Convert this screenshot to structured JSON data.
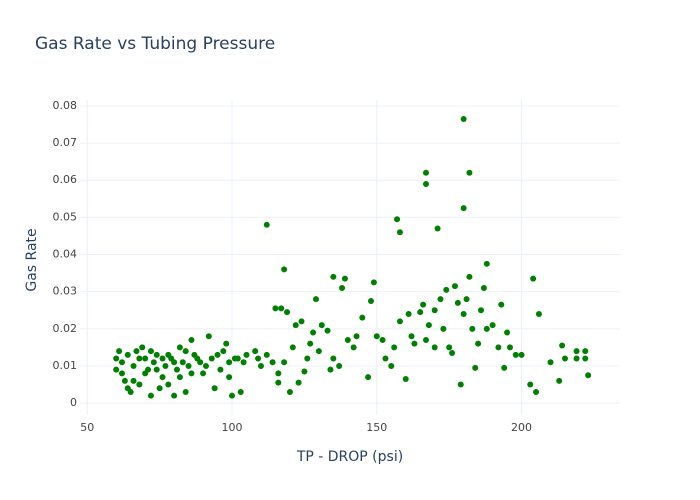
{
  "chart_data": {
    "type": "scatter",
    "title": "Gas Rate vs Tubing Pressure",
    "x_label": "TP - DROP (psi)",
    "y_label": "Gas Rate",
    "color": "#008000",
    "grid": true,
    "xlim": [
      47.5,
      234
    ],
    "ylim": [
      -0.0032,
      0.0816
    ],
    "xticks": [
      50,
      100,
      150,
      200
    ],
    "yticks": [
      0,
      0.01,
      0.02,
      0.03,
      0.04,
      0.05,
      0.06,
      0.07,
      0.08
    ],
    "x": [
      112,
      118,
      157,
      158,
      167,
      167,
      171,
      180,
      182,
      180,
      188,
      204,
      206,
      135,
      138,
      139,
      149,
      148,
      129,
      115,
      117,
      119,
      174,
      177,
      181,
      166,
      182,
      187,
      193,
      195,
      200,
      203,
      205,
      210,
      213,
      214,
      215,
      219,
      222,
      223,
      222,
      219,
      194,
      179,
      160,
      155,
      147,
      143,
      140,
      133,
      131,
      127,
      125,
      123,
      120,
      116,
      116,
      122,
      124,
      126,
      130,
      135,
      137,
      145,
      150,
      153,
      158,
      162,
      165,
      168,
      170,
      172,
      175,
      178,
      183,
      185,
      186,
      190,
      192,
      196,
      163,
      170,
      184,
      176,
      105,
      108,
      110,
      103,
      100,
      101,
      98,
      95,
      92,
      90,
      88,
      85,
      82,
      80,
      78,
      75,
      72,
      70,
      68,
      66,
      64,
      62,
      60,
      63,
      65,
      67,
      69,
      71,
      73,
      74,
      76,
      77,
      79,
      81,
      83,
      84,
      86,
      87,
      89,
      91,
      93,
      96,
      97,
      99,
      102,
      104,
      60,
      61,
      62,
      64,
      66,
      68,
      70,
      72,
      74,
      76,
      78,
      80,
      82,
      84,
      86,
      94,
      99,
      109,
      112,
      114,
      118,
      121,
      128,
      134,
      142,
      152,
      156,
      161,
      167,
      173,
      180,
      188,
      198
    ],
    "y": [
      0.048,
      0.036,
      0.0495,
      0.046,
      0.062,
      0.059,
      0.047,
      0.0765,
      0.062,
      0.0525,
      0.0375,
      0.0335,
      0.024,
      0.034,
      0.031,
      0.0335,
      0.0325,
      0.0275,
      0.028,
      0.0255,
      0.0255,
      0.0245,
      0.0305,
      0.0315,
      0.028,
      0.0265,
      0.034,
      0.031,
      0.0265,
      0.019,
      0.013,
      0.005,
      0.003,
      0.011,
      0.006,
      0.0155,
      0.012,
      0.014,
      0.014,
      0.0075,
      0.012,
      0.012,
      0.0095,
      0.005,
      0.0065,
      0.01,
      0.007,
      0.018,
      0.017,
      0.0195,
      0.021,
      0.016,
      0.0085,
      0.0055,
      0.003,
      0.0055,
      0.008,
      0.021,
      0.022,
      0.012,
      0.014,
      0.012,
      0.01,
      0.023,
      0.018,
      0.012,
      0.022,
      0.018,
      0.0245,
      0.021,
      0.025,
      0.028,
      0.015,
      0.027,
      0.02,
      0.016,
      0.025,
      0.021,
      0.015,
      0.015,
      0.016,
      0.015,
      0.0095,
      0.0135,
      0.013,
      0.014,
      0.01,
      0.003,
      0.002,
      0.012,
      0.016,
      0.013,
      0.018,
      0.008,
      0.012,
      0.01,
      0.015,
      0.002,
      0.005,
      0.004,
      0.002,
      0.008,
      0.012,
      0.01,
      0.013,
      0.011,
      0.012,
      0.006,
      0.003,
      0.014,
      0.015,
      0.009,
      0.011,
      0.013,
      0.007,
      0.01,
      0.012,
      0.009,
      0.011,
      0.014,
      0.008,
      0.013,
      0.011,
      0.01,
      0.012,
      0.009,
      0.014,
      0.011,
      0.012,
      0.011,
      0.009,
      0.014,
      0.008,
      0.004,
      0.006,
      0.005,
      0.012,
      0.014,
      0.009,
      0.012,
      0.013,
      0.011,
      0.007,
      0.003,
      0.017,
      0.004,
      0.007,
      0.012,
      0.013,
      0.011,
      0.011,
      0.015,
      0.019,
      0.009,
      0.015,
      0.017,
      0.015,
      0.024,
      0.017,
      0.02,
      0.024,
      0.02,
      0.013
    ]
  }
}
